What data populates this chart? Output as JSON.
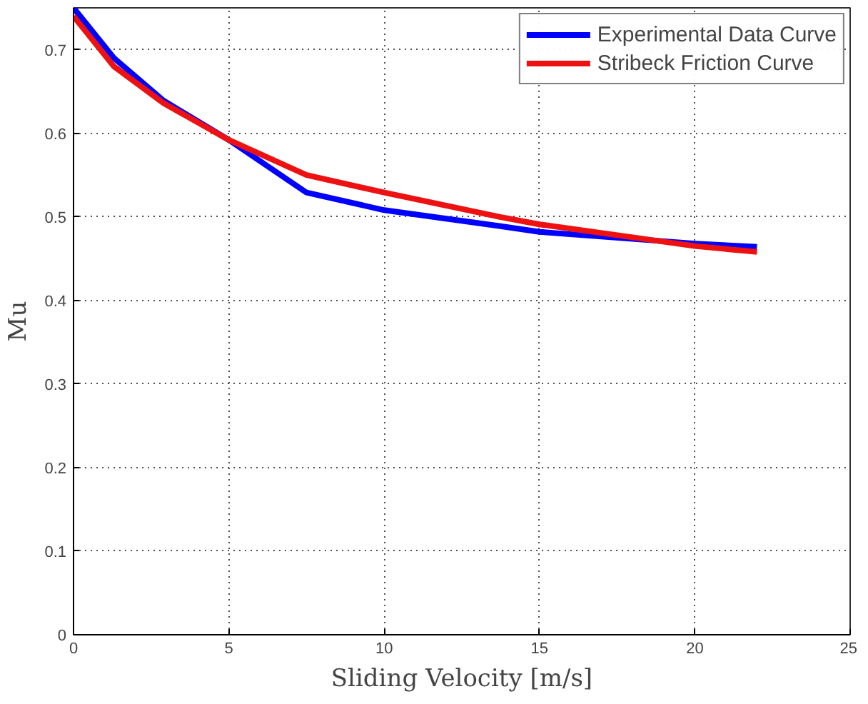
{
  "chart_data": {
    "type": "line",
    "xlabel": "Sliding Velocity [m/s]",
    "ylabel": "Mu",
    "xlim": [
      0,
      25
    ],
    "ylim": [
      0,
      0.75
    ],
    "xticks": [
      0,
      5,
      10,
      15,
      20,
      25
    ],
    "yticks": [
      0,
      0.1,
      0.2,
      0.3,
      0.4,
      0.5,
      0.6,
      0.7
    ],
    "grid": true,
    "legend": "top right",
    "line_style": "solid",
    "series": [
      {
        "name": "Experimental Data Curve",
        "color": "#0000ff",
        "x": [
          0,
          1.3,
          2.9,
          5,
          7.5,
          10,
          13.7,
          15,
          20,
          22
        ],
        "values": [
          0.75,
          0.69,
          0.639,
          0.592,
          0.529,
          0.508,
          0.489,
          0.482,
          0.468,
          0.464
        ]
      },
      {
        "name": "Stribeck Friction Curve",
        "color": "#ee1111",
        "x": [
          0,
          1.3,
          2.9,
          5,
          7.5,
          10,
          13.7,
          15,
          20,
          22
        ],
        "values": [
          0.74,
          0.68,
          0.636,
          0.592,
          0.55,
          0.529,
          0.5,
          0.491,
          0.465,
          0.458
        ]
      }
    ]
  }
}
